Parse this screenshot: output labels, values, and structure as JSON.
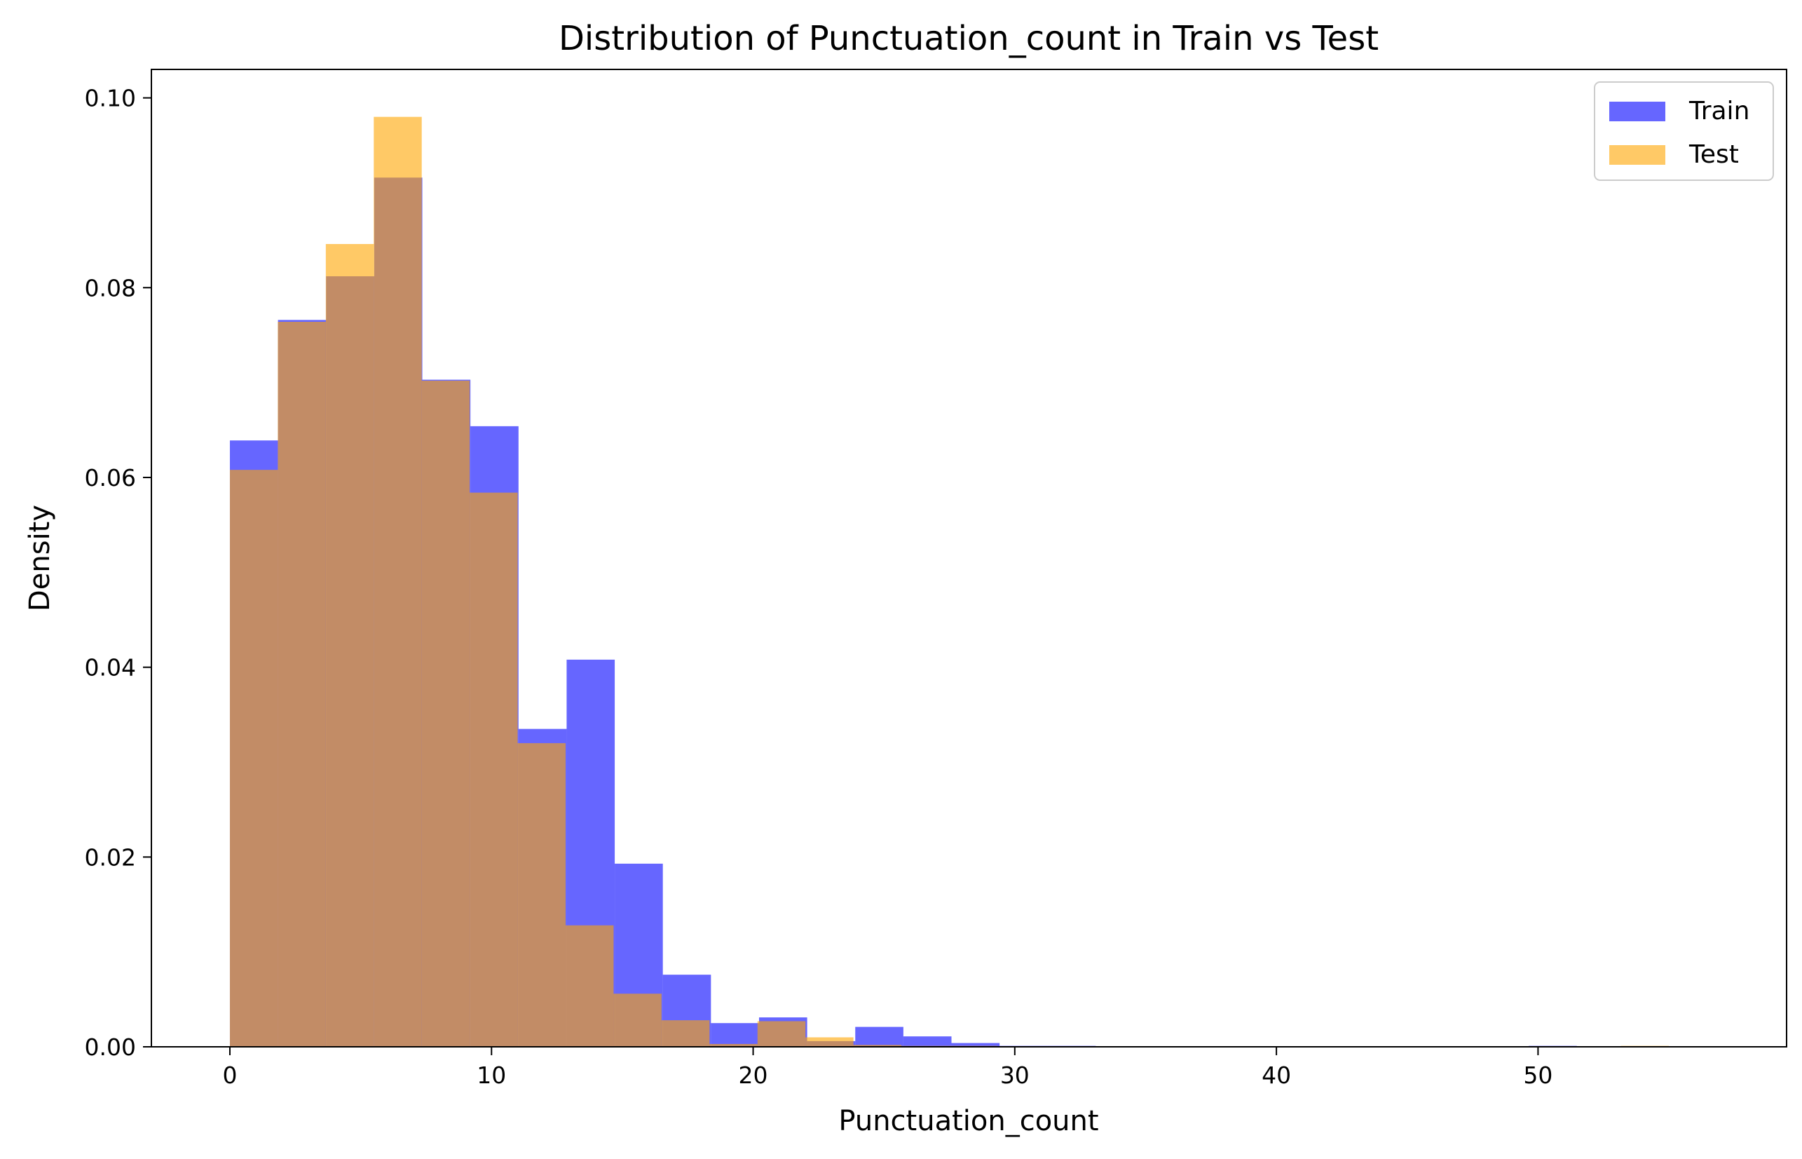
{
  "chart_data": {
    "type": "bar",
    "title": "Distribution of Punctuation_count in Train vs Test",
    "xlabel": "Punctuation_count",
    "ylabel": "Density",
    "xlim": [
      -3,
      59.5
    ],
    "ylim": [
      0,
      0.103
    ],
    "xticks": [
      0,
      10,
      20,
      30,
      40,
      50
    ],
    "xtick_labels": [
      "0",
      "10",
      "20",
      "30",
      "40",
      "50"
    ],
    "yticks": [
      0,
      0.02,
      0.04,
      0.06,
      0.08,
      0.1
    ],
    "ytick_labels": [
      "0.00",
      "0.02",
      "0.04",
      "0.06",
      "0.08",
      "0.10"
    ],
    "grid": false,
    "legend": {
      "position": "top-right",
      "entries": [
        "Train",
        "Test"
      ]
    },
    "series": [
      {
        "name": "Train",
        "color": "#0000ff",
        "alpha": 0.6,
        "bin_start": 0,
        "bin_width": 1.8387,
        "values": [
          0.0639,
          0.0766,
          0.0812,
          0.0916,
          0.0703,
          0.0654,
          0.0335,
          0.0408,
          0.0193,
          0.0076,
          0.0025,
          0.0031,
          0.0006,
          0.0021,
          0.0011,
          0.0004,
          0.0001,
          0.0001,
          0,
          0,
          0,
          0,
          0,
          0,
          0,
          0,
          0,
          0.0001,
          0,
          0,
          0
        ]
      },
      {
        "name": "Test",
        "color": "#ffa500",
        "alpha": 0.6,
        "bin_start": 0,
        "bin_width": 1.8333,
        "values": [
          0.0608,
          0.0764,
          0.0846,
          0.098,
          0.0702,
          0.0584,
          0.032,
          0.0128,
          0.0056,
          0.0028,
          0.0003,
          0.0027,
          0.001,
          0.0002,
          0.0001,
          0.0001,
          0,
          0,
          0,
          0,
          0,
          0,
          0,
          0,
          0,
          0,
          0,
          0,
          0,
          0.0001
        ]
      }
    ]
  }
}
